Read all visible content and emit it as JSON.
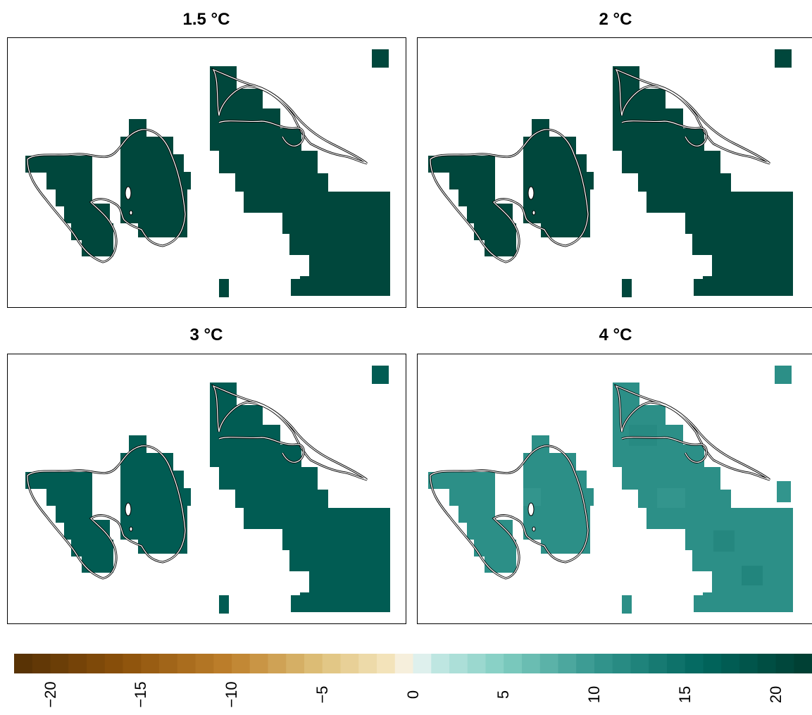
{
  "panels": [
    {
      "title": "1.5 °C",
      "value": 20.5
    },
    {
      "title": "2 °C",
      "value": 20.5
    },
    {
      "title": "3 °C",
      "value": 17.5
    },
    {
      "title": "4 °C",
      "value": 11.0
    }
  ],
  "colorbar": {
    "min": -22,
    "max": 22,
    "ticks": [
      "−20",
      "−15",
      "−10",
      "−5",
      "0",
      "5",
      "10",
      "15",
      "20"
    ],
    "tick_values": [
      -20,
      -15,
      -10,
      -5,
      0,
      5,
      10,
      15,
      20
    ],
    "stops": [
      {
        "v": -22,
        "c": "#543005"
      },
      {
        "v": -16,
        "c": "#8c510a"
      },
      {
        "v": -10,
        "c": "#bf812d"
      },
      {
        "v": -5,
        "c": "#dfc27d"
      },
      {
        "v": -1,
        "c": "#f6e8c3"
      },
      {
        "v": 0,
        "c": "#f5f5f5"
      },
      {
        "v": 1,
        "c": "#c7eae5"
      },
      {
        "v": 5,
        "c": "#80cdc1"
      },
      {
        "v": 10,
        "c": "#35978f"
      },
      {
        "v": 16,
        "c": "#01665e"
      },
      {
        "v": 22,
        "c": "#003c30"
      }
    ]
  }
}
